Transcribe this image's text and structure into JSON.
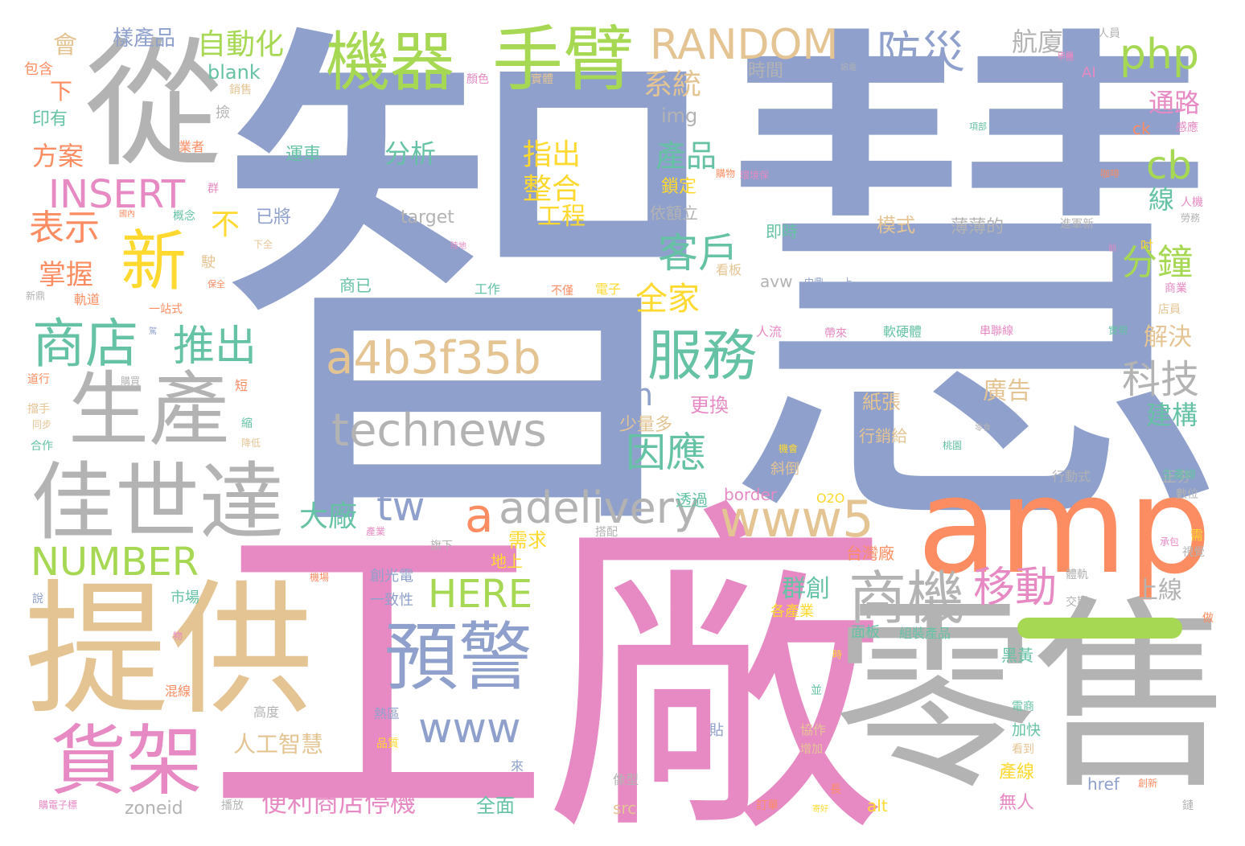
{
  "palette": {
    "blue": "#8ea0cb",
    "orange": "#fc8d62",
    "pink": "#e78ac3",
    "green": "#a6d854",
    "tan": "#e5c494",
    "gray": "#b3b3b3",
    "yellow": "#ffd92f",
    "teal": "#66c2a5"
  },
  "words": {
    "w1": "智慧",
    "w2": "工廠",
    "w3": "零售",
    "w4": "提供",
    "w5": "從",
    "w6": "amp",
    "w7": "生產",
    "w8": "佳世達",
    "w9": "機器",
    "w10": "手臂",
    "w11": "貨架",
    "w12": "預警",
    "w13": "technews",
    "w14": "a4b3f35b",
    "w15": "服務",
    "w16": "商機",
    "w17": "新",
    "w18": "商店",
    "w19": "www5",
    "w20": "adelivery",
    "w21": "RANDOM",
    "w22": "php",
    "w23": "防災",
    "w24": "INSERT",
    "w25": "NUMBER",
    "w26": "HERE",
    "w27": "www",
    "w28": "移動",
    "w29": "推出",
    "w30": "因應",
    "w31": "客戶",
    "w32": "產品",
    "w33": "科技",
    "w34": "分鐘",
    "w35": "cb",
    "w36": "自動化",
    "w37": "tw",
    "w38": "便利商店停機",
    "w39": "表示",
    "w40": "掌握",
    "w41": "整合",
    "w42": "工程",
    "w43": "指出",
    "w44": "系統",
    "w45": "全家",
    "w46": "大廠",
    "w47": "人工智慧",
    "w48": "通路",
    "w49": "航廈",
    "w50": "分析",
    "w51": "方案",
    "w52": "樣產品",
    "w53": "會",
    "w54": "下",
    "w55": "印有",
    "w56": "包含",
    "w57": "blank",
    "w58": "img",
    "w59": "運車",
    "w60": "時間",
    "w61": "target",
    "w62": "已將",
    "w63": "不",
    "w64": "鎖定",
    "w65": "依額立",
    "w66": "模式",
    "w67": "薄薄的",
    "w68": "即時",
    "w69": "線",
    "w70": "建構",
    "w71": "解決",
    "w72": "廣告",
    "w73": "上線",
    "w74": "群創",
    "w75": "少量多",
    "w76": "更換",
    "w77": "紙張",
    "w78": "行銷給",
    "w79": "n",
    "w80": "a",
    "w81": "border",
    "w82": "透過",
    "w83": "需求",
    "w84": "台灣廠",
    "w85": "地上",
    "w86": "創光電",
    "w87": "一致性",
    "w88": "市場",
    "w89": "各產業",
    "w90": "面板",
    "w91": "組裝產品",
    "w92": "黑黃",
    "w93": "zoneid",
    "w94": "src",
    "w95": "alt",
    "w96": "全面",
    "w97": "無人",
    "w98": "產線",
    "w99": "href",
    "w100": "avw",
    "w101": "商已",
    "w102": "工作",
    "w103": "不僅",
    "w104": "電子",
    "w105": "人流",
    "w106": "帶來",
    "w107": "軟硬體",
    "w108": "串聯線",
    "w109": "實現",
    "w110": "O2O",
    "w111": "正夯",
    "w112": "生產線",
    "w113": "數位",
    "w114": "行動式",
    "w115": "視覺",
    "w116": "承包",
    "w117": "體軌",
    "w118": "交期",
    "w119": "加快",
    "w120": "電商",
    "w121": "看到",
    "w122": "創新",
    "w123": "鏈",
    "w124": "做",
    "w125": "混線",
    "w126": "高度",
    "w127": "熱區",
    "w128": "品質",
    "w129": "貼",
    "w130": "協作",
    "w131": "增加",
    "w132": "長",
    "w133": "訂單",
    "w134": "播放",
    "w135": "來",
    "w136": "像型",
    "w137": "並",
    "w138": "道行",
    "w139": "擋手",
    "w140": "同步",
    "w141": "合作",
    "w142": "短",
    "w143": "縮",
    "w144": "降低",
    "w145": "購買",
    "w146": "軌道",
    "w147": "新鼎",
    "w148": "駛",
    "w149": "一站式",
    "w150": "業者",
    "w151": "撿",
    "w152": "銷售",
    "w153": "實體",
    "w154": "顏色",
    "w155": "人員",
    "w156": "中興",
    "w157": "AI",
    "w158": "ck",
    "w159": "感應",
    "w160": "人機",
    "w161": "勞務",
    "w162": "咖啡",
    "w163": "進軍新",
    "w164": "吋",
    "w165": "商業",
    "w166": "店員",
    "w167": "看板",
    "w168": "中鼎",
    "w169": "上",
    "w170": "購物",
    "w171": "桃園",
    "w172": "零食",
    "w173": "機會",
    "w174": "斜倒",
    "w175": "旗下",
    "w176": "搭配",
    "w177": "機場",
    "w178": "說",
    "w179": "購電子標",
    "w180": "物",
    "w181": "資訊",
    "w182": "環境保",
    "w183": "項部",
    "w184": "前",
    "w185": "概念",
    "w186": "保全",
    "w187": "下全",
    "w188": "陸地",
    "w189": "出門",
    "w190": "群",
    "w191": "產業",
    "w192": "寄好",
    "w193": "時",
    "w194": "需",
    "w195": "中國",
    "w196": "訊電",
    "w197": "國內",
    "w198": "駕"
  }
}
